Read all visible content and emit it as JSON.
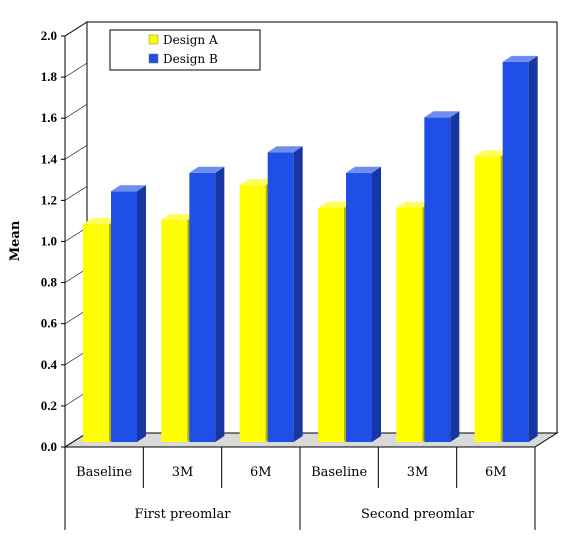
{
  "chart_data": {
    "type": "bar",
    "ylabel": "Mean",
    "ylim": [
      0,
      2.0
    ],
    "yticks": [
      "0.0",
      "0.2",
      "0.4",
      "0.6",
      "0.8",
      "1.0",
      "1.2",
      "1.4",
      "1.6",
      "1.8",
      "2.0"
    ],
    "categories": [
      "Baseline",
      "3M",
      "6M",
      "Baseline",
      "3M",
      "6M"
    ],
    "groups": [
      "First preomlar",
      "Second preomlar"
    ],
    "series": [
      {
        "name": "Design A",
        "color": "#ffff00",
        "values": [
          1.06,
          1.08,
          1.25,
          1.14,
          1.14,
          1.39
        ]
      },
      {
        "name": "Design B",
        "color": "#1f4fe6",
        "values": [
          1.22,
          1.31,
          1.41,
          1.31,
          1.58,
          1.85
        ]
      }
    ],
    "legend_position": "top-left",
    "grid": false
  }
}
